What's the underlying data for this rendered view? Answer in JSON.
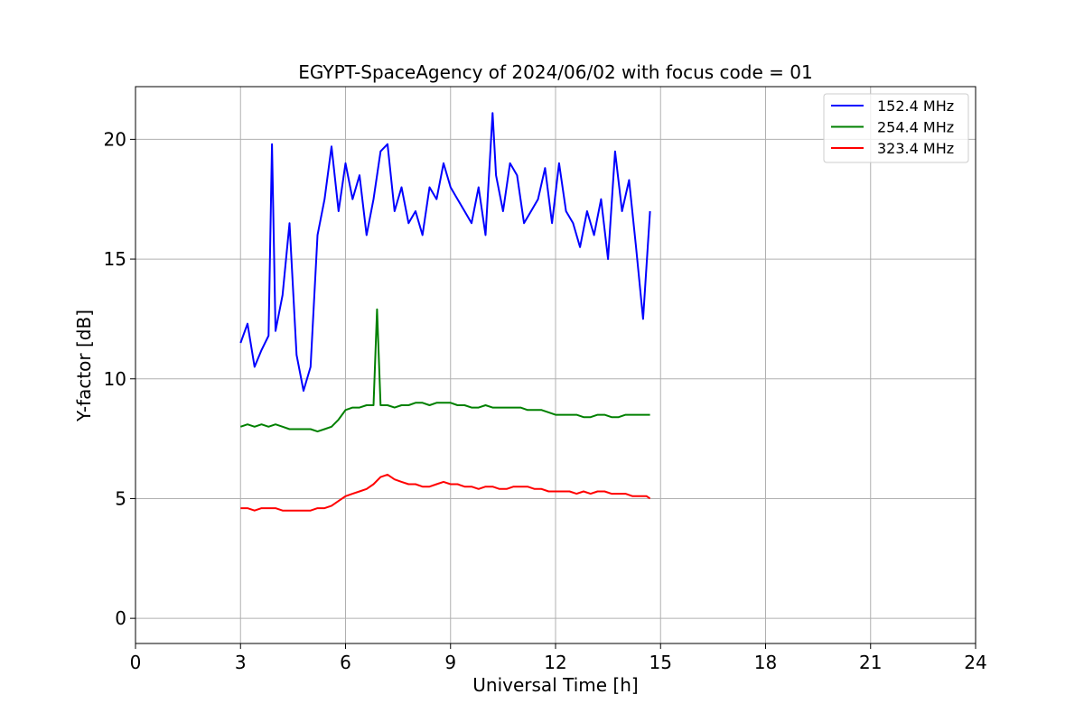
{
  "chart_data": {
    "type": "line",
    "title": "EGYPT-SpaceAgency of 2024/06/02 with focus code = 01",
    "xlabel": "Universal Time [h]",
    "ylabel": "Y-factor [dB]",
    "xlim": [
      0,
      24
    ],
    "ylim": [
      -1.05,
      22.2
    ],
    "xticks": [
      0,
      3,
      6,
      9,
      12,
      15,
      18,
      21,
      24
    ],
    "yticks": [
      0,
      5,
      10,
      15,
      20
    ],
    "grid": true,
    "legend_position": "top-right",
    "series": [
      {
        "name": "152.4 MHz",
        "color": "#0000ff",
        "x": [
          3.0,
          3.2,
          3.4,
          3.6,
          3.8,
          3.9,
          4.0,
          4.2,
          4.4,
          4.6,
          4.8,
          5.0,
          5.2,
          5.4,
          5.6,
          5.8,
          6.0,
          6.2,
          6.4,
          6.6,
          6.8,
          7.0,
          7.2,
          7.4,
          7.6,
          7.8,
          8.0,
          8.2,
          8.4,
          8.6,
          8.8,
          9.0,
          9.2,
          9.4,
          9.6,
          9.8,
          10.0,
          10.2,
          10.3,
          10.5,
          10.7,
          10.9,
          11.1,
          11.3,
          11.5,
          11.7,
          11.9,
          12.1,
          12.3,
          12.5,
          12.7,
          12.9,
          13.1,
          13.3,
          13.5,
          13.7,
          13.9,
          14.1,
          14.3,
          14.5,
          14.7
        ],
        "y": [
          11.5,
          12.3,
          10.5,
          11.2,
          11.8,
          19.8,
          12.0,
          13.5,
          16.5,
          11.0,
          9.5,
          10.5,
          16.0,
          17.5,
          19.7,
          17.0,
          19.0,
          17.5,
          18.5,
          16.0,
          17.5,
          19.5,
          19.8,
          17.0,
          18.0,
          16.5,
          17.0,
          16.0,
          18.0,
          17.5,
          19.0,
          18.0,
          17.5,
          17.0,
          16.5,
          18.0,
          16.0,
          21.1,
          18.5,
          17.0,
          19.0,
          18.5,
          16.5,
          17.0,
          17.5,
          18.8,
          16.5,
          19.0,
          17.0,
          16.5,
          15.5,
          17.0,
          16.0,
          17.5,
          15.0,
          19.5,
          17.0,
          18.3,
          15.5,
          12.5,
          17.0
        ]
      },
      {
        "name": "254.4 MHz",
        "color": "#008000",
        "x": [
          3.0,
          3.2,
          3.4,
          3.6,
          3.8,
          4.0,
          4.2,
          4.4,
          4.6,
          4.8,
          5.0,
          5.2,
          5.4,
          5.6,
          5.8,
          6.0,
          6.2,
          6.4,
          6.6,
          6.8,
          6.9,
          7.0,
          7.2,
          7.4,
          7.6,
          7.8,
          8.0,
          8.2,
          8.4,
          8.6,
          8.8,
          9.0,
          9.2,
          9.4,
          9.6,
          9.8,
          10.0,
          10.2,
          10.4,
          10.6,
          10.8,
          11.0,
          11.2,
          11.4,
          11.6,
          11.8,
          12.0,
          12.2,
          12.4,
          12.6,
          12.8,
          13.0,
          13.2,
          13.4,
          13.6,
          13.8,
          14.0,
          14.2,
          14.4,
          14.6,
          14.7
        ],
        "y": [
          8.0,
          8.1,
          8.0,
          8.1,
          8.0,
          8.1,
          8.0,
          7.9,
          7.9,
          7.9,
          7.9,
          7.8,
          7.9,
          8.0,
          8.3,
          8.7,
          8.8,
          8.8,
          8.9,
          8.9,
          12.9,
          8.9,
          8.9,
          8.8,
          8.9,
          8.9,
          9.0,
          9.0,
          8.9,
          9.0,
          9.0,
          9.0,
          8.9,
          8.9,
          8.8,
          8.8,
          8.9,
          8.8,
          8.8,
          8.8,
          8.8,
          8.8,
          8.7,
          8.7,
          8.7,
          8.6,
          8.5,
          8.5,
          8.5,
          8.5,
          8.4,
          8.4,
          8.5,
          8.5,
          8.4,
          8.4,
          8.5,
          8.5,
          8.5,
          8.5,
          8.5
        ]
      },
      {
        "name": "323.4 MHz",
        "color": "#ff0000",
        "x": [
          3.0,
          3.2,
          3.4,
          3.6,
          3.8,
          4.0,
          4.2,
          4.4,
          4.6,
          4.8,
          5.0,
          5.2,
          5.4,
          5.6,
          5.8,
          6.0,
          6.2,
          6.4,
          6.6,
          6.8,
          7.0,
          7.2,
          7.4,
          7.6,
          7.8,
          8.0,
          8.2,
          8.4,
          8.6,
          8.8,
          9.0,
          9.2,
          9.4,
          9.6,
          9.8,
          10.0,
          10.2,
          10.4,
          10.6,
          10.8,
          11.0,
          11.2,
          11.4,
          11.6,
          11.8,
          12.0,
          12.2,
          12.4,
          12.6,
          12.8,
          13.0,
          13.2,
          13.4,
          13.6,
          13.8,
          14.0,
          14.2,
          14.4,
          14.6,
          14.7
        ],
        "y": [
          4.6,
          4.6,
          4.5,
          4.6,
          4.6,
          4.6,
          4.5,
          4.5,
          4.5,
          4.5,
          4.5,
          4.6,
          4.6,
          4.7,
          4.9,
          5.1,
          5.2,
          5.3,
          5.4,
          5.6,
          5.9,
          6.0,
          5.8,
          5.7,
          5.6,
          5.6,
          5.5,
          5.5,
          5.6,
          5.7,
          5.6,
          5.6,
          5.5,
          5.5,
          5.4,
          5.5,
          5.5,
          5.4,
          5.4,
          5.5,
          5.5,
          5.5,
          5.4,
          5.4,
          5.3,
          5.3,
          5.3,
          5.3,
          5.2,
          5.3,
          5.2,
          5.3,
          5.3,
          5.2,
          5.2,
          5.2,
          5.1,
          5.1,
          5.1,
          5.0
        ]
      }
    ]
  }
}
